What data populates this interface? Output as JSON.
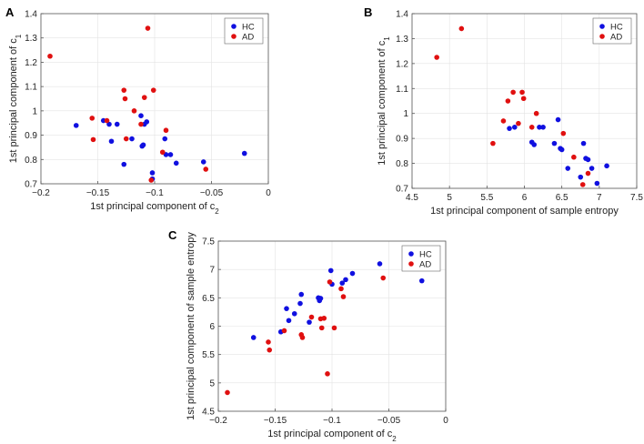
{
  "chart_data": [
    {
      "panel": "A",
      "type": "scatter",
      "xlabel": "1st principal component of c",
      "xlabel_sub": "2",
      "ylabel": "1st principal component of c",
      "ylabel_sub": "1",
      "xlim": [
        -0.2,
        0
      ],
      "ylim": [
        0.7,
        1.4
      ],
      "xticks": [
        -0.2,
        -0.15,
        -0.1,
        -0.05,
        0
      ],
      "xtick_labels": [
        "−0.2",
        "−0.15",
        "−0.1",
        "−0.05",
        "0"
      ],
      "yticks": [
        0.7,
        0.8,
        0.9,
        1.0,
        1.1,
        1.2,
        1.3,
        1.4
      ],
      "ytick_labels": [
        "0.7",
        "0.8",
        "0.9",
        "1",
        "1.1",
        "1.2",
        "1.3",
        "1.4"
      ],
      "legend": "top-right",
      "series": [
        {
          "name": "HC",
          "color": "#1010e0",
          "points": [
            [
              -0.169,
              0.94
            ],
            [
              -0.145,
              0.96
            ],
            [
              -0.14,
              0.945
            ],
            [
              -0.138,
              0.875
            ],
            [
              -0.133,
              0.945
            ],
            [
              -0.127,
              0.78
            ],
            [
              -0.12,
              0.885
            ],
            [
              -0.112,
              0.98
            ],
            [
              -0.111,
              0.855
            ],
            [
              -0.11,
              0.86
            ],
            [
              -0.109,
              0.945
            ],
            [
              -0.107,
              0.955
            ],
            [
              -0.102,
              0.745
            ],
            [
              -0.102,
              0.72
            ],
            [
              -0.091,
              0.885
            ],
            [
              -0.09,
              0.82
            ],
            [
              -0.086,
              0.82
            ],
            [
              -0.081,
              0.785
            ],
            [
              -0.057,
              0.79
            ],
            [
              -0.021,
              0.825
            ]
          ]
        },
        {
          "name": "AD",
          "color": "#e01010",
          "points": [
            [
              -0.192,
              1.225
            ],
            [
              -0.155,
              0.97
            ],
            [
              -0.154,
              0.882
            ],
            [
              -0.142,
              0.96
            ],
            [
              -0.127,
              1.085
            ],
            [
              -0.126,
              1.05
            ],
            [
              -0.125,
              0.885
            ],
            [
              -0.118,
              1.0
            ],
            [
              -0.112,
              0.945
            ],
            [
              -0.109,
              1.055
            ],
            [
              -0.106,
              1.34
            ],
            [
              -0.101,
              1.085
            ],
            [
              -0.103,
              0.715
            ],
            [
              -0.093,
              0.83
            ],
            [
              -0.09,
              0.92
            ],
            [
              -0.055,
              0.76
            ]
          ]
        }
      ]
    },
    {
      "panel": "B",
      "type": "scatter",
      "xlabel": "1st principal component of sample entropy",
      "ylabel": "1st principal component of c",
      "ylabel_sub": "1",
      "xlim": [
        4.5,
        7.5
      ],
      "ylim": [
        0.7,
        1.4
      ],
      "xticks": [
        4.5,
        5,
        5.5,
        6,
        6.5,
        7,
        7.5
      ],
      "xtick_labels": [
        "4.5",
        "5",
        "5.5",
        "6",
        "6.5",
        "7",
        "7.5"
      ],
      "yticks": [
        0.7,
        0.8,
        0.9,
        1.0,
        1.1,
        1.2,
        1.3,
        1.4
      ],
      "ytick_labels": [
        "0.7",
        "0.8",
        "0.9",
        "1",
        "1.1",
        "1.2",
        "1.3",
        "1.4"
      ],
      "legend": "top-right",
      "series": [
        {
          "name": "HC",
          "color": "#1010e0",
          "points": [
            [
              5.8,
              0.94
            ],
            [
              5.87,
              0.945
            ],
            [
              6.1,
              0.885
            ],
            [
              6.13,
              0.875
            ],
            [
              6.2,
              0.945
            ],
            [
              6.25,
              0.945
            ],
            [
              6.4,
              0.88
            ],
            [
              6.45,
              0.975
            ],
            [
              6.48,
              0.86
            ],
            [
              6.5,
              0.855
            ],
            [
              6.58,
              0.78
            ],
            [
              6.75,
              0.745
            ],
            [
              6.79,
              0.88
            ],
            [
              6.82,
              0.82
            ],
            [
              6.85,
              0.815
            ],
            [
              6.9,
              0.78
            ],
            [
              6.97,
              0.72
            ],
            [
              7.1,
              0.79
            ]
          ]
        },
        {
          "name": "AD",
          "color": "#e01010",
          "points": [
            [
              4.83,
              1.225
            ],
            [
              5.16,
              1.34
            ],
            [
              5.58,
              0.88
            ],
            [
              5.72,
              0.97
            ],
            [
              5.78,
              1.05
            ],
            [
              5.85,
              1.085
            ],
            [
              5.92,
              0.96
            ],
            [
              5.97,
              1.085
            ],
            [
              5.99,
              1.06
            ],
            [
              6.1,
              0.945
            ],
            [
              6.16,
              1.0
            ],
            [
              6.52,
              0.92
            ],
            [
              6.66,
              0.825
            ],
            [
              6.78,
              0.715
            ],
            [
              6.85,
              0.76
            ]
          ]
        }
      ]
    },
    {
      "panel": "C",
      "type": "scatter",
      "xlabel": "1st principal component of c",
      "xlabel_sub": "2",
      "ylabel": "1st principal component of sample entropy",
      "xlim": [
        -0.2,
        0
      ],
      "ylim": [
        4.5,
        7.5
      ],
      "xticks": [
        -0.2,
        -0.15,
        -0.1,
        -0.05,
        0
      ],
      "xtick_labels": [
        "−0.2",
        "−0.15",
        "−0.1",
        "−0.05",
        "0"
      ],
      "yticks": [
        4.5,
        5,
        5.5,
        6,
        6.5,
        7,
        7.5
      ],
      "ytick_labels": [
        "4.5",
        "5",
        "5.5",
        "6",
        "6.5",
        "7",
        "7.5"
      ],
      "legend": "top-right",
      "series": [
        {
          "name": "HC",
          "color": "#1010e0",
          "points": [
            [
              -0.169,
              5.8
            ],
            [
              -0.145,
              5.9
            ],
            [
              -0.14,
              6.31
            ],
            [
              -0.138,
              6.1
            ],
            [
              -0.133,
              6.22
            ],
            [
              -0.128,
              6.4
            ],
            [
              -0.127,
              6.56
            ],
            [
              -0.12,
              6.07
            ],
            [
              -0.112,
              6.5
            ],
            [
              -0.111,
              6.45
            ],
            [
              -0.11,
              6.49
            ],
            [
              -0.101,
              6.98
            ],
            [
              -0.1,
              6.74
            ],
            [
              -0.091,
              6.76
            ],
            [
              -0.088,
              6.82
            ],
            [
              -0.082,
              6.93
            ],
            [
              -0.058,
              7.1
            ],
            [
              -0.021,
              6.8
            ]
          ]
        },
        {
          "name": "AD",
          "color": "#e01010",
          "points": [
            [
              -0.192,
              4.83
            ],
            [
              -0.156,
              5.72
            ],
            [
              -0.155,
              5.58
            ],
            [
              -0.142,
              5.92
            ],
            [
              -0.127,
              5.85
            ],
            [
              -0.126,
              5.8
            ],
            [
              -0.118,
              6.16
            ],
            [
              -0.11,
              6.13
            ],
            [
              -0.109,
              5.97
            ],
            [
              -0.107,
              6.14
            ],
            [
              -0.104,
              5.16
            ],
            [
              -0.102,
              6.78
            ],
            [
              -0.098,
              5.97
            ],
            [
              -0.092,
              6.66
            ],
            [
              -0.09,
              6.52
            ],
            [
              -0.055,
              6.85
            ]
          ]
        }
      ]
    }
  ]
}
